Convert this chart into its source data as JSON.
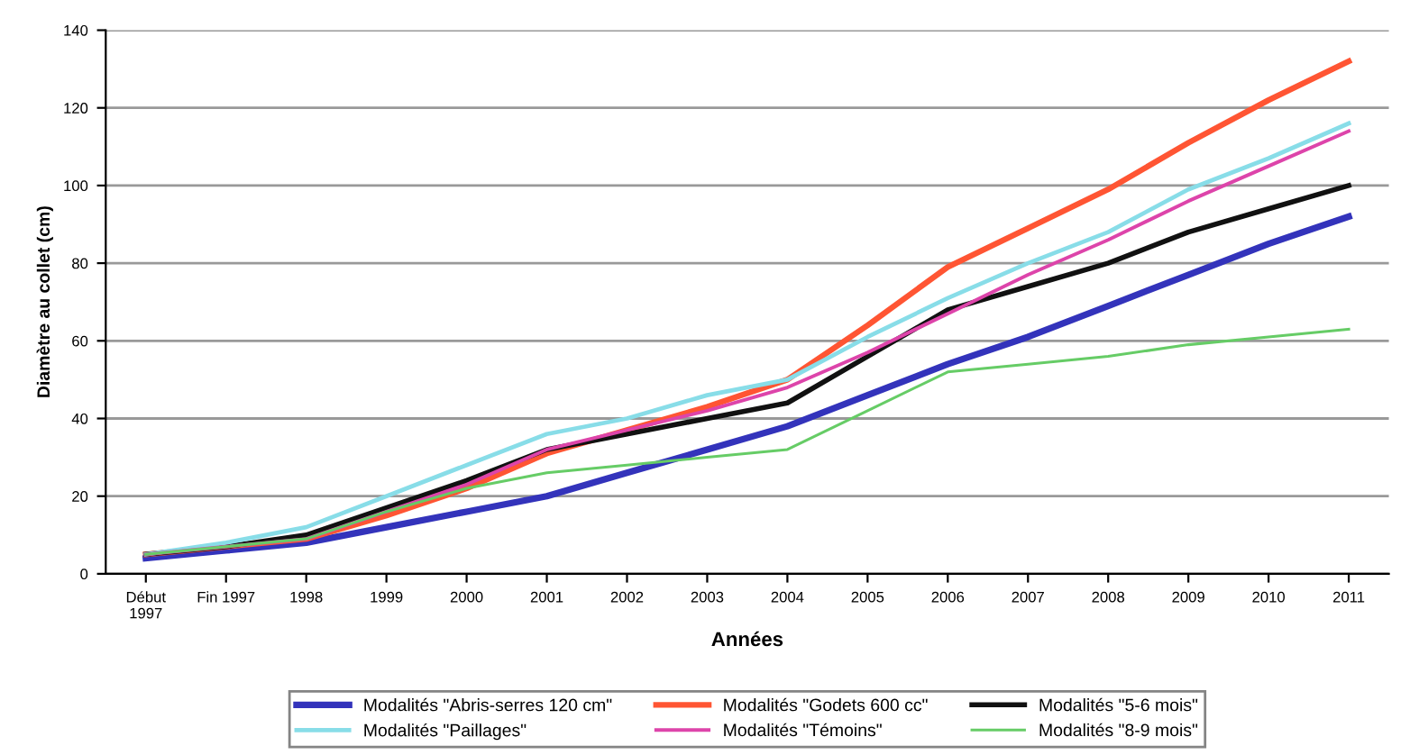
{
  "chart_data": {
    "type": "line",
    "xlabel": "Années",
    "ylabel": "Diamètre au collet (cm)",
    "categories": [
      "Début\n1997",
      "Fin 1997",
      "1998",
      "1999",
      "2000",
      "2001",
      "2002",
      "2003",
      "2004",
      "2005",
      "2006",
      "2007",
      "2008",
      "2009",
      "2010",
      "2011"
    ],
    "series": [
      {
        "name": "Modalités \"Abris-serres 120 cm\"",
        "color": "#3333bb",
        "values": [
          4,
          6,
          8,
          12,
          16,
          20,
          26,
          32,
          38,
          46,
          54,
          61,
          69,
          77,
          85,
          92
        ]
      },
      {
        "name": "Modalités \"Godets 600 cc\"",
        "color": "#ff5533",
        "values": [
          5,
          7,
          9,
          15,
          22,
          31,
          37,
          43,
          50,
          64,
          79,
          89,
          99,
          111,
          122,
          132
        ]
      },
      {
        "name": "Modalités \"5-6 mois\"",
        "color": "#111111",
        "values": [
          5,
          7,
          10,
          17,
          24,
          32,
          36,
          40,
          44,
          56,
          68,
          74,
          80,
          88,
          94,
          100
        ]
      },
      {
        "name": "Modalités \"Paillages\"",
        "color": "#88dde8",
        "values": [
          5,
          8,
          12,
          20,
          28,
          36,
          40,
          46,
          50,
          61,
          71,
          80,
          88,
          99,
          107,
          116
        ]
      },
      {
        "name": "Modalités \"Témoins\"",
        "color": "#dd44aa",
        "values": [
          5,
          7,
          9,
          16,
          23,
          32,
          37,
          42,
          48,
          57,
          67,
          77,
          86,
          96,
          105,
          114
        ]
      },
      {
        "name": "Modalités \"8-9 mois\"",
        "color": "#66cc66",
        "values": [
          5,
          7,
          9,
          16,
          22,
          26,
          28,
          30,
          32,
          42,
          52,
          54,
          56,
          59,
          61,
          63
        ]
      }
    ],
    "ylim": [
      0,
      140
    ],
    "yticks": [
      0,
      20,
      40,
      60,
      80,
      100,
      120,
      140
    ],
    "grid": "y",
    "legend": "bottom",
    "marker": "none",
    "line_style": "solid"
  }
}
